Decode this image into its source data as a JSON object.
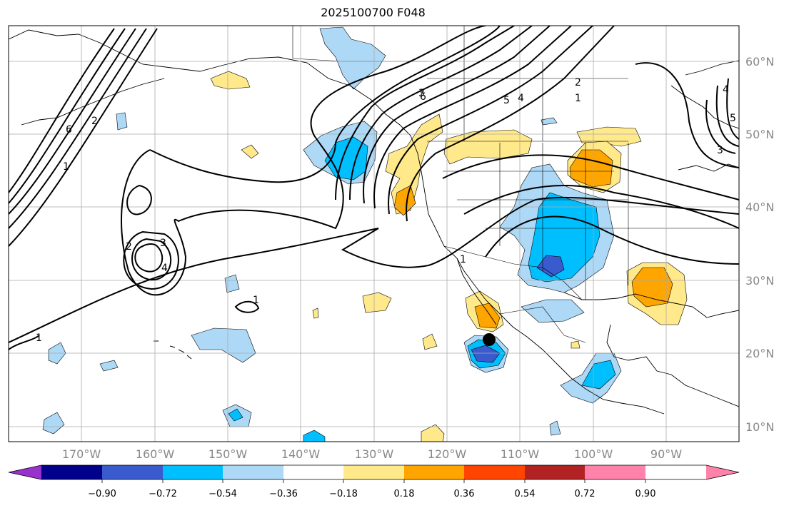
{
  "title": "2025100700 F048",
  "lat_labels": [
    "60°N",
    "50°N",
    "40°N",
    "30°N",
    "20°N",
    "10°N"
  ],
  "lon_labels": [
    "170°W",
    "160°W",
    "150°W",
    "140°W",
    "130°W",
    "120°W",
    "110°W",
    "100°W",
    "90°W"
  ],
  "colorbar": {
    "tick_labels": [
      "−0.90",
      "−0.72",
      "−0.54",
      "−0.36",
      "−0.18",
      "0.18",
      "0.36",
      "0.54",
      "0.72",
      "0.90"
    ],
    "colors": [
      "#9932cc",
      "#00008b",
      "#3a5bcd",
      "#00bfff",
      "#add8f6",
      "#ffffff",
      "#ffe98a",
      "#ffa500",
      "#ff4500",
      "#b22222",
      "#ff82ab"
    ]
  },
  "contour_labels": {
    "c1": "1",
    "c2": "2",
    "c3": "3",
    "c4": "4",
    "c5": "5",
    "c6": "6"
  },
  "marker_color": "#000000"
}
